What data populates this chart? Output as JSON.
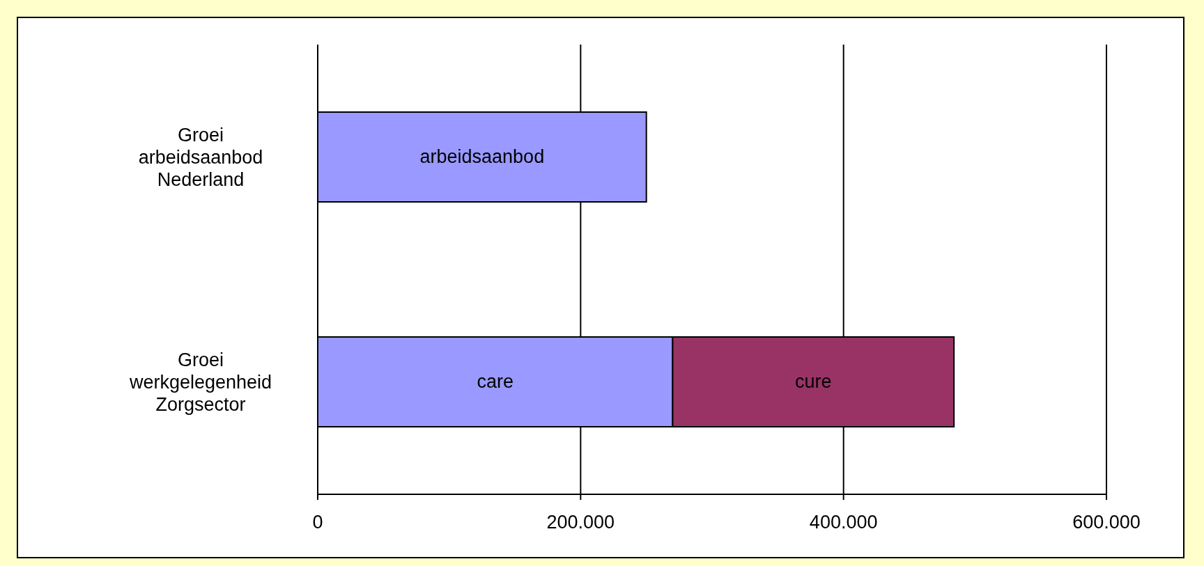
{
  "chart_data": {
    "type": "bar",
    "orientation": "horizontal",
    "stacked": true,
    "categories": [
      "Groei arbeidsaanbod Nederland",
      "Groei werkgelegenheid Zorgsector"
    ],
    "series": [
      {
        "name": "arbeidsaanbod",
        "color": "#9999ff",
        "values": [
          250000,
          null
        ]
      },
      {
        "name": "care",
        "color": "#9999ff",
        "values": [
          null,
          270000
        ]
      },
      {
        "name": "cure",
        "color": "#993366",
        "values": [
          null,
          214000
        ]
      }
    ],
    "xlim": [
      0,
      600000
    ],
    "xticks": [
      0,
      {
        "value": 200000,
        "label": "200.000"
      },
      {
        "value": 400000,
        "label": "400.000"
      },
      {
        "value": 600000,
        "label": "600.000"
      }
    ],
    "grid": "x",
    "legend": false
  }
}
